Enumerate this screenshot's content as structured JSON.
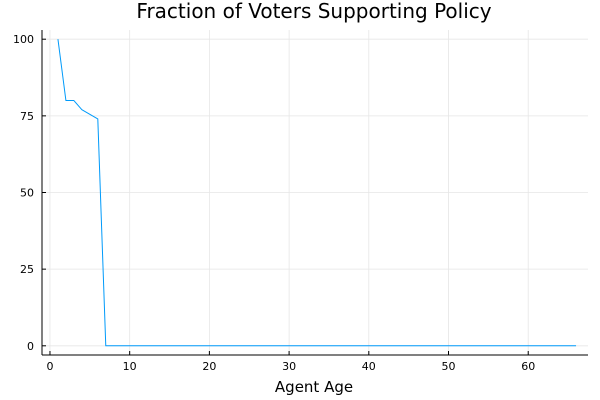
{
  "chart_data": {
    "type": "line",
    "title": "Fraction of Voters Supporting Policy",
    "xlabel": "Agent Age",
    "ylabel": "",
    "xlim": [
      -1,
      67.5
    ],
    "ylim": [
      -3,
      103
    ],
    "xticks": [
      0,
      10,
      20,
      30,
      40,
      50,
      60
    ],
    "yticks": [
      0,
      25,
      50,
      75,
      100
    ],
    "grid": true,
    "legend": "none",
    "series": [
      {
        "color": "#009AFA",
        "x": [
          1,
          2,
          3,
          4,
          5,
          6,
          7,
          8,
          10,
          20,
          30,
          40,
          50,
          60,
          66
        ],
        "y": [
          100,
          80,
          80,
          77,
          75.5,
          74,
          0,
          0,
          0,
          0,
          0,
          0,
          0,
          0,
          0
        ]
      }
    ]
  }
}
